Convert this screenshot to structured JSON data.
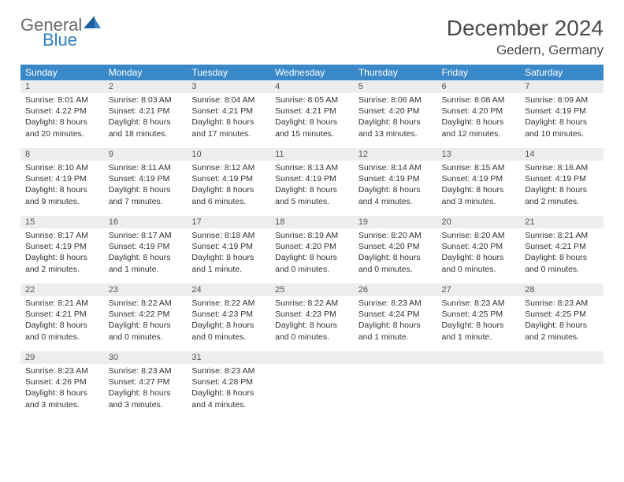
{
  "brand": {
    "line1": "General",
    "line2": "Blue"
  },
  "title": "December 2024",
  "location": "Gedern, Germany",
  "colors": {
    "header_bg": "#3a88c8",
    "header_text": "#ffffff",
    "daynum_bg": "#ededed",
    "week_border": "#2f7ec2",
    "body_text": "#333333",
    "logo_gray": "#6a6a6a",
    "logo_blue": "#2f7ec2"
  },
  "weekdays": [
    "Sunday",
    "Monday",
    "Tuesday",
    "Wednesday",
    "Thursday",
    "Friday",
    "Saturday"
  ],
  "weeks": [
    [
      {
        "n": "1",
        "sr": "Sunrise: 8:01 AM",
        "ss": "Sunset: 4:22 PM",
        "d1": "Daylight: 8 hours",
        "d2": "and 20 minutes."
      },
      {
        "n": "2",
        "sr": "Sunrise: 8:03 AM",
        "ss": "Sunset: 4:21 PM",
        "d1": "Daylight: 8 hours",
        "d2": "and 18 minutes."
      },
      {
        "n": "3",
        "sr": "Sunrise: 8:04 AM",
        "ss": "Sunset: 4:21 PM",
        "d1": "Daylight: 8 hours",
        "d2": "and 17 minutes."
      },
      {
        "n": "4",
        "sr": "Sunrise: 8:05 AM",
        "ss": "Sunset: 4:21 PM",
        "d1": "Daylight: 8 hours",
        "d2": "and 15 minutes."
      },
      {
        "n": "5",
        "sr": "Sunrise: 8:06 AM",
        "ss": "Sunset: 4:20 PM",
        "d1": "Daylight: 8 hours",
        "d2": "and 13 minutes."
      },
      {
        "n": "6",
        "sr": "Sunrise: 8:08 AM",
        "ss": "Sunset: 4:20 PM",
        "d1": "Daylight: 8 hours",
        "d2": "and 12 minutes."
      },
      {
        "n": "7",
        "sr": "Sunrise: 8:09 AM",
        "ss": "Sunset: 4:19 PM",
        "d1": "Daylight: 8 hours",
        "d2": "and 10 minutes."
      }
    ],
    [
      {
        "n": "8",
        "sr": "Sunrise: 8:10 AM",
        "ss": "Sunset: 4:19 PM",
        "d1": "Daylight: 8 hours",
        "d2": "and 9 minutes."
      },
      {
        "n": "9",
        "sr": "Sunrise: 8:11 AM",
        "ss": "Sunset: 4:19 PM",
        "d1": "Daylight: 8 hours",
        "d2": "and 7 minutes."
      },
      {
        "n": "10",
        "sr": "Sunrise: 8:12 AM",
        "ss": "Sunset: 4:19 PM",
        "d1": "Daylight: 8 hours",
        "d2": "and 6 minutes."
      },
      {
        "n": "11",
        "sr": "Sunrise: 8:13 AM",
        "ss": "Sunset: 4:19 PM",
        "d1": "Daylight: 8 hours",
        "d2": "and 5 minutes."
      },
      {
        "n": "12",
        "sr": "Sunrise: 8:14 AM",
        "ss": "Sunset: 4:19 PM",
        "d1": "Daylight: 8 hours",
        "d2": "and 4 minutes."
      },
      {
        "n": "13",
        "sr": "Sunrise: 8:15 AM",
        "ss": "Sunset: 4:19 PM",
        "d1": "Daylight: 8 hours",
        "d2": "and 3 minutes."
      },
      {
        "n": "14",
        "sr": "Sunrise: 8:16 AM",
        "ss": "Sunset: 4:19 PM",
        "d1": "Daylight: 8 hours",
        "d2": "and 2 minutes."
      }
    ],
    [
      {
        "n": "15",
        "sr": "Sunrise: 8:17 AM",
        "ss": "Sunset: 4:19 PM",
        "d1": "Daylight: 8 hours",
        "d2": "and 2 minutes."
      },
      {
        "n": "16",
        "sr": "Sunrise: 8:17 AM",
        "ss": "Sunset: 4:19 PM",
        "d1": "Daylight: 8 hours",
        "d2": "and 1 minute."
      },
      {
        "n": "17",
        "sr": "Sunrise: 8:18 AM",
        "ss": "Sunset: 4:19 PM",
        "d1": "Daylight: 8 hours",
        "d2": "and 1 minute."
      },
      {
        "n": "18",
        "sr": "Sunrise: 8:19 AM",
        "ss": "Sunset: 4:20 PM",
        "d1": "Daylight: 8 hours",
        "d2": "and 0 minutes."
      },
      {
        "n": "19",
        "sr": "Sunrise: 8:20 AM",
        "ss": "Sunset: 4:20 PM",
        "d1": "Daylight: 8 hours",
        "d2": "and 0 minutes."
      },
      {
        "n": "20",
        "sr": "Sunrise: 8:20 AM",
        "ss": "Sunset: 4:20 PM",
        "d1": "Daylight: 8 hours",
        "d2": "and 0 minutes."
      },
      {
        "n": "21",
        "sr": "Sunrise: 8:21 AM",
        "ss": "Sunset: 4:21 PM",
        "d1": "Daylight: 8 hours",
        "d2": "and 0 minutes."
      }
    ],
    [
      {
        "n": "22",
        "sr": "Sunrise: 8:21 AM",
        "ss": "Sunset: 4:21 PM",
        "d1": "Daylight: 8 hours",
        "d2": "and 0 minutes."
      },
      {
        "n": "23",
        "sr": "Sunrise: 8:22 AM",
        "ss": "Sunset: 4:22 PM",
        "d1": "Daylight: 8 hours",
        "d2": "and 0 minutes."
      },
      {
        "n": "24",
        "sr": "Sunrise: 8:22 AM",
        "ss": "Sunset: 4:23 PM",
        "d1": "Daylight: 8 hours",
        "d2": "and 0 minutes."
      },
      {
        "n": "25",
        "sr": "Sunrise: 8:22 AM",
        "ss": "Sunset: 4:23 PM",
        "d1": "Daylight: 8 hours",
        "d2": "and 0 minutes."
      },
      {
        "n": "26",
        "sr": "Sunrise: 8:23 AM",
        "ss": "Sunset: 4:24 PM",
        "d1": "Daylight: 8 hours",
        "d2": "and 1 minute."
      },
      {
        "n": "27",
        "sr": "Sunrise: 8:23 AM",
        "ss": "Sunset: 4:25 PM",
        "d1": "Daylight: 8 hours",
        "d2": "and 1 minute."
      },
      {
        "n": "28",
        "sr": "Sunrise: 8:23 AM",
        "ss": "Sunset: 4:25 PM",
        "d1": "Daylight: 8 hours",
        "d2": "and 2 minutes."
      }
    ],
    [
      {
        "n": "29",
        "sr": "Sunrise: 8:23 AM",
        "ss": "Sunset: 4:26 PM",
        "d1": "Daylight: 8 hours",
        "d2": "and 3 minutes."
      },
      {
        "n": "30",
        "sr": "Sunrise: 8:23 AM",
        "ss": "Sunset: 4:27 PM",
        "d1": "Daylight: 8 hours",
        "d2": "and 3 minutes."
      },
      {
        "n": "31",
        "sr": "Sunrise: 8:23 AM",
        "ss": "Sunset: 4:28 PM",
        "d1": "Daylight: 8 hours",
        "d2": "and 4 minutes."
      },
      {
        "empty": true
      },
      {
        "empty": true
      },
      {
        "empty": true
      },
      {
        "empty": true
      }
    ]
  ]
}
